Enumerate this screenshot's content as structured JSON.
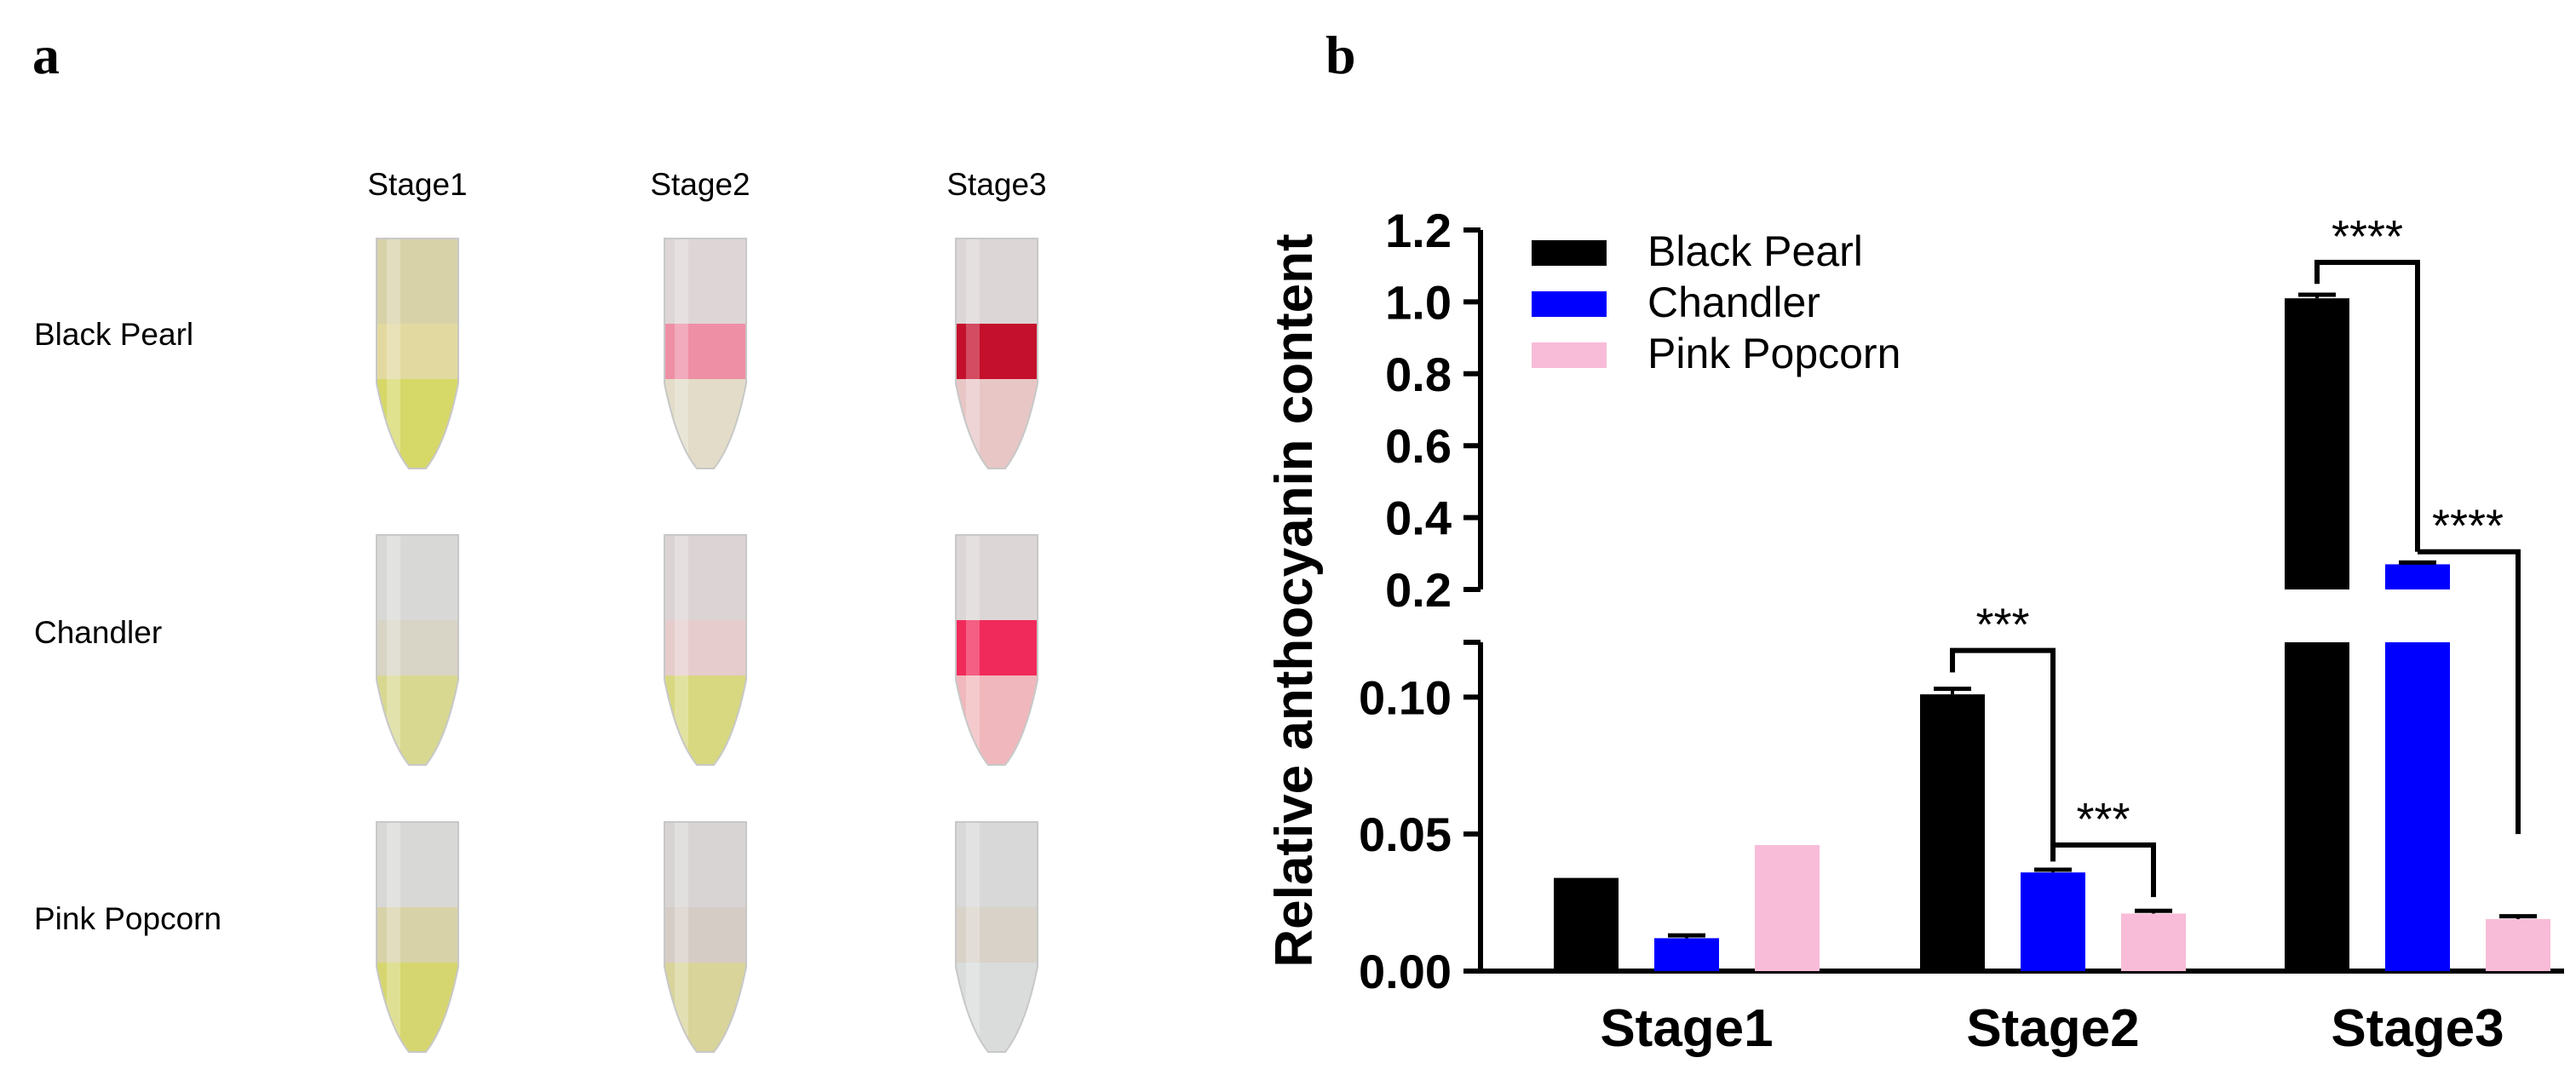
{
  "panel_a": {
    "letter": "a",
    "columns": [
      "Stage1",
      "Stage2",
      "Stage3"
    ],
    "rows": [
      "Black Pearl",
      "Chandler",
      "Pink Popcorn"
    ],
    "tube_colors": [
      {
        "top": "#d8d2a8",
        "band": "#e2d9a0",
        "bottom": "#d6d868"
      },
      {
        "top": "#ded6d6",
        "band": "#ee8fa6",
        "bottom": "#e2dcc8"
      },
      {
        "top": "#dcd6d6",
        "band": "#c4102c",
        "bottom": "#e8c6c6"
      },
      {
        "top": "#d8d8d6",
        "band": "#d8d4c6",
        "bottom": "#d8d890"
      },
      {
        "top": "#dcd4d4",
        "band": "#e6cccc",
        "bottom": "#d8d880"
      },
      {
        "top": "#dcd6d6",
        "band": "#f02a5a",
        "bottom": "#f0b8bc"
      },
      {
        "top": "#d8d8d6",
        "band": "#d8d2a8",
        "bottom": "#d6d670"
      },
      {
        "top": "#d8d4d4",
        "band": "#d6ccc6",
        "bottom": "#d8d49a"
      },
      {
        "top": "#d8d8d8",
        "band": "#d8d2c8",
        "bottom": "#dadcdc"
      }
    ]
  },
  "panel_b": {
    "letter": "b"
  },
  "chart_data": {
    "type": "bar",
    "title": "",
    "xlabel": "",
    "ylabel": "Relative anthocyanin content",
    "categories": [
      "Stage1",
      "Stage2",
      "Stage3"
    ],
    "series": [
      {
        "name": "Black Pearl",
        "color": "#000000",
        "values": [
          0.034,
          0.101,
          1.01
        ],
        "errors": [
          0,
          0.002,
          0.01
        ]
      },
      {
        "name": "Chandler",
        "color": "#0000ff",
        "values": [
          0.012,
          0.036,
          0.27
        ],
        "errors": [
          0.001,
          0.001,
          0.005
        ]
      },
      {
        "name": "Pink Popcorn",
        "color": "#f8bcd8",
        "values": [
          0.046,
          0.021,
          0.019
        ],
        "errors": [
          0,
          0.001,
          0.001
        ]
      }
    ],
    "axis_break": {
      "lower_range": [
        0.0,
        0.12
      ],
      "upper_range": [
        0.2,
        1.2
      ],
      "lower_ticks": [
        "0.00",
        "0.05",
        "0.10"
      ],
      "lower_tick_values": [
        0,
        0.05,
        0.1
      ],
      "upper_ticks": [
        "0.2",
        "0.4",
        "0.6",
        "0.8",
        "1.0",
        "1.2"
      ],
      "upper_tick_values": [
        0.2,
        0.4,
        0.6,
        0.8,
        1.0,
        1.2
      ]
    },
    "significance": [
      {
        "category": "Stage2",
        "from": "Black Pearl",
        "to": "Chandler",
        "label": "***"
      },
      {
        "category": "Stage2",
        "from": "Chandler",
        "to": "Pink Popcorn",
        "label": "***"
      },
      {
        "category": "Stage3",
        "from": "Black Pearl",
        "to": "Chandler",
        "label": "****"
      },
      {
        "category": "Stage3",
        "from": "Chandler",
        "to": "Pink Popcorn",
        "label": "****"
      }
    ],
    "legend_position": "top-left"
  }
}
